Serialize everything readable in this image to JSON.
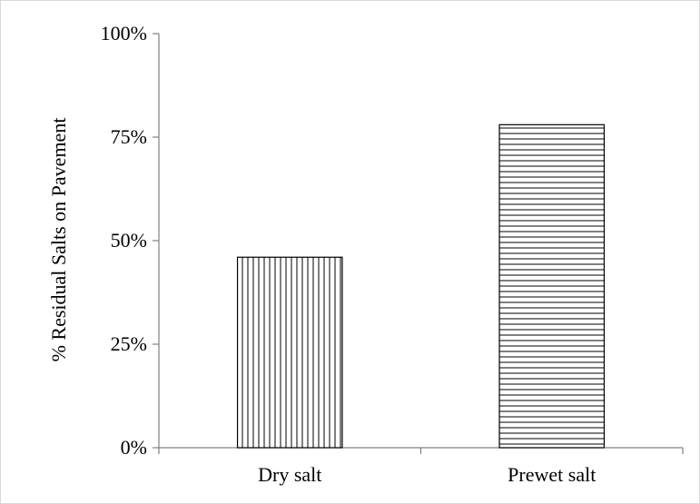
{
  "chart_data": {
    "type": "bar",
    "categories": [
      "Dry salt",
      "Prewet salt"
    ],
    "values": [
      46,
      78
    ],
    "value_unit": "%",
    "title": "",
    "xlabel": "",
    "ylabel": "% Residual Salts on Pavement",
    "ylim": [
      0,
      100
    ],
    "yticks": [
      0,
      25,
      50,
      75,
      100
    ],
    "ytick_labels": [
      "0%",
      "25%",
      "50%",
      "75%",
      "100%"
    ],
    "bar_fill_patterns": [
      "vertical-lines",
      "horizontal-lines"
    ],
    "grid": false,
    "legend": "none",
    "colors": {
      "bar_stroke": "#000000",
      "axis": "#808080",
      "background": "#ffffff"
    }
  }
}
